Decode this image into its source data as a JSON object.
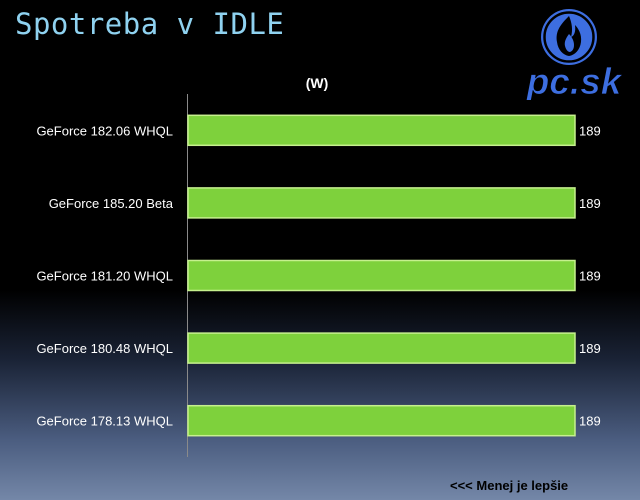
{
  "slide": {
    "title": "Spotreba v IDLE",
    "logo_text": "pc.sk",
    "logo_icon": "flame-icon",
    "footnote": "<<< Menej je lepšie"
  },
  "colors": {
    "title": "#8fd2f0",
    "bar_fill": "#7ed13c",
    "bar_stroke": "#c6f08e",
    "logo_blue": "#3d6ee0",
    "background_top": "#000000",
    "background_bottom": "#7487a8"
  },
  "chart_data": {
    "type": "bar",
    "orientation": "horizontal",
    "title": "Spotreba v IDLE",
    "unit_label": "(W)",
    "categories": [
      "GeForce 182.06 WHQL",
      "GeForce 185.20 Beta",
      "GeForce 181.20 WHQL",
      "GeForce 180.48 WHQL",
      "GeForce 178.13 WHQL"
    ],
    "values": [
      189,
      189,
      189,
      189,
      189
    ],
    "value_labels": [
      "189",
      "189",
      "189",
      "189",
      "189"
    ],
    "xlim": [
      0,
      189
    ],
    "grid": false,
    "legend": "none"
  }
}
